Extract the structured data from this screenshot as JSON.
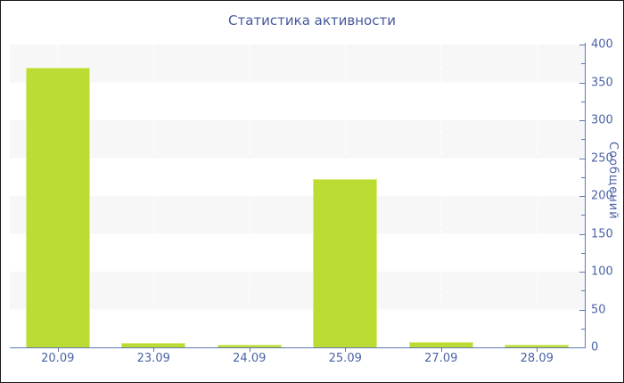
{
  "window": {
    "background": "#ffffff",
    "border_color": "#1a1a1a"
  },
  "chart_data": {
    "type": "bar",
    "title": "Статистика активности",
    "categories": [
      "20.09",
      "23.09",
      "24.09",
      "25.09",
      "27.09",
      "28.09"
    ],
    "values": [
      370,
      6,
      3,
      222,
      7,
      3
    ],
    "xlabel": "",
    "ylabel": "Сообщений",
    "ylim": [
      0,
      400
    ],
    "y_major_step": 50,
    "y_minor_step": 25,
    "y_tick_labels": [
      "0",
      "50",
      "100",
      "150",
      "200",
      "250",
      "300",
      "350",
      "400"
    ],
    "legend": "none",
    "grid": "alternating horizontal stripe bands every 50 units; faint white dashed vertical lines at category centers; y-axis on right side",
    "colors": {
      "bar_fill": "#bbdd33",
      "bar_edge": "#d9ec85",
      "axis": "#5f77b3",
      "tick_label": "#4e64a8",
      "title": "#46589c",
      "stripe_band": "#f7f7f7",
      "plot_background": "#ffffff"
    }
  }
}
